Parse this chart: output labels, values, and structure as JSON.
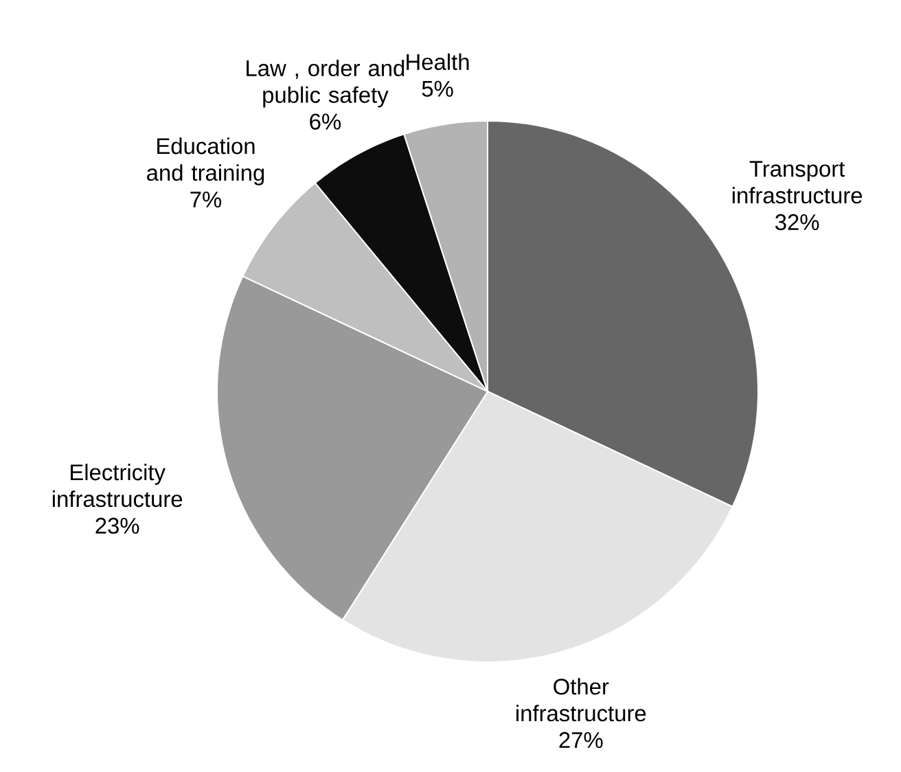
{
  "chart_data": {
    "type": "pie",
    "categories": [
      "Transport infrastructure",
      "Other infrastructure",
      "Electricity infrastructure",
      "Education and training",
      "Law , order and public safety",
      "Health"
    ],
    "values": [
      32,
      27,
      23,
      7,
      6,
      5
    ],
    "value_labels": [
      "32%",
      "27%",
      "23%",
      "7%",
      "6%",
      "5%"
    ],
    "colors": [
      "#666666",
      "#e3e3e3",
      "#999999",
      "#bfbfbf",
      "#0d0d0d",
      "#b3b3b3"
    ]
  }
}
